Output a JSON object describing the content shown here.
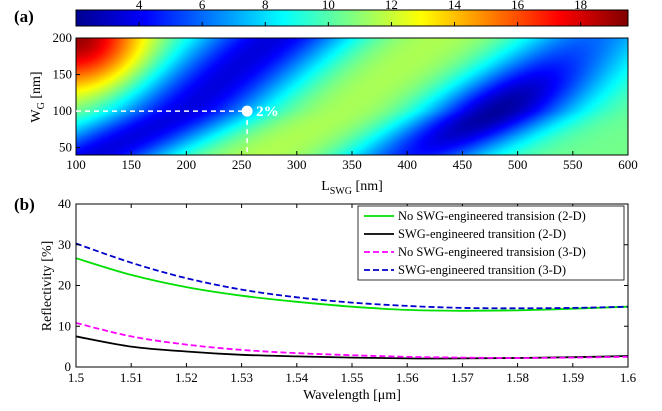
{
  "chart_data": [
    {
      "panel_label": "(a)",
      "type": "heatmap",
      "xlabel": "L",
      "xlabel_sub": "SWG",
      "xlabel_unit": " [nm]",
      "ylabel": "W",
      "ylabel_sub": "G",
      "ylabel_unit": " [nm]",
      "xlim": [
        100,
        600
      ],
      "ylim": [
        40,
        200
      ],
      "xticks": [
        "100",
        "150",
        "200",
        "250",
        "300",
        "350",
        "400",
        "450",
        "500",
        "550",
        "600"
      ],
      "yticks": [
        "50",
        "100",
        "150",
        "200"
      ],
      "colorbar": {
        "range": [
          2,
          19.5
        ],
        "ticks": [
          "4",
          "6",
          "8",
          "10",
          "12",
          "14",
          "16",
          "18"
        ],
        "colormap": "jet",
        "colors": [
          "#00008f",
          "#0000ff",
          "#0080ff",
          "#00ffff",
          "#80ff80",
          "#ffff00",
          "#ff8000",
          "#ff0000",
          "#800000"
        ]
      },
      "minima_path": [
        [
          120,
          40
        ],
        [
          200,
          100
        ],
        [
          280,
          200
        ]
      ],
      "second_valley": [
        [
          410,
          40
        ],
        [
          480,
          100
        ],
        [
          560,
          200
        ]
      ],
      "global_min_region": [
        535,
        100
      ],
      "marker": {
        "x": 255,
        "y": 100,
        "label": "2%",
        "color": "#ffffff"
      },
      "grid": false
    },
    {
      "panel_label": "(b)",
      "type": "line",
      "xlabel": "Wavelength [μm]",
      "ylabel": "Reflectivity [%]",
      "xlim": [
        1.5,
        1.6
      ],
      "ylim": [
        0,
        40
      ],
      "xticks": [
        "1.5",
        "1.51",
        "1.52",
        "1.53",
        "1.54",
        "1.55",
        "1.56",
        "1.57",
        "1.58",
        "1.59",
        "1.6"
      ],
      "yticks": [
        "0",
        "10",
        "20",
        "30",
        "40"
      ],
      "legend_position": "top-right",
      "grid": false,
      "x": [
        1.5,
        1.51,
        1.52,
        1.53,
        1.54,
        1.55,
        1.56,
        1.57,
        1.58,
        1.59,
        1.6
      ],
      "series": [
        {
          "name": "No SWG-engineered transision (2-D)",
          "color": "#00e000",
          "dash": "solid",
          "values": [
            26.7,
            22.6,
            19.6,
            17.5,
            16.0,
            14.8,
            14.0,
            13.8,
            13.9,
            14.3,
            14.8
          ]
        },
        {
          "name": "SWG-engineered transition (2-D)",
          "color": "#000000",
          "dash": "solid",
          "values": [
            7.5,
            5.0,
            3.8,
            3.0,
            2.6,
            2.3,
            2.1,
            2.1,
            2.2,
            2.4,
            2.7
          ]
        },
        {
          "name": "No SWG-engineered transision (3-D)",
          "color": "#ff00ff",
          "dash": "dashed",
          "values": [
            10.8,
            7.5,
            5.5,
            4.2,
            3.4,
            2.9,
            2.5,
            2.3,
            2.2,
            2.3,
            2.5
          ]
        },
        {
          "name": "SWG-engineered transition (3-D)",
          "color": "#0000cc",
          "dash": "dashed",
          "values": [
            30.3,
            25.6,
            21.8,
            19.0,
            17.1,
            15.8,
            15.0,
            14.5,
            14.4,
            14.5,
            14.8
          ]
        }
      ]
    }
  ]
}
